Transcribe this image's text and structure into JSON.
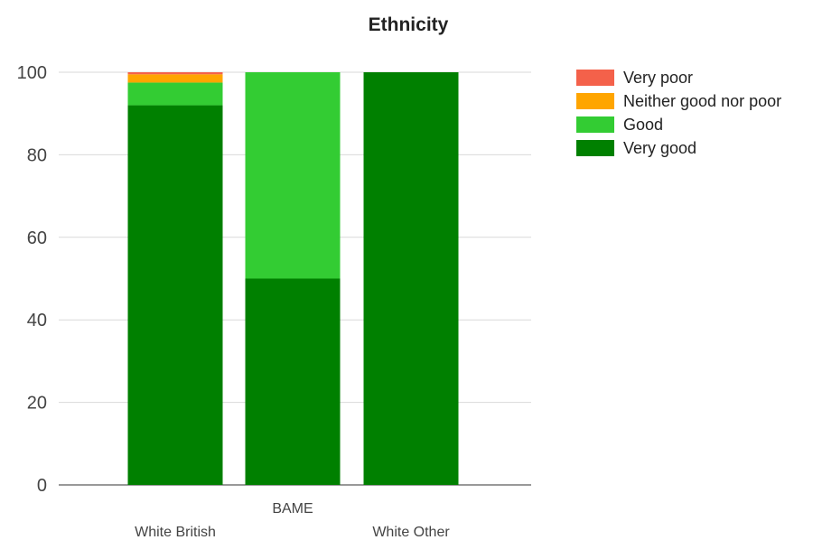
{
  "chart_data": {
    "type": "bar",
    "stacked": true,
    "title": "Ethnicity",
    "xlabel": "",
    "ylabel": "",
    "categories": [
      "White British",
      "BAME",
      "White Other"
    ],
    "series": [
      {
        "name": "Very good",
        "color": "#008000",
        "values": [
          92,
          50,
          100
        ]
      },
      {
        "name": "Good",
        "color": "#33cc33",
        "values": [
          5.5,
          50,
          0
        ]
      },
      {
        "name": "Neither good nor poor",
        "color": "#ffa500",
        "values": [
          2,
          0,
          0
        ]
      },
      {
        "name": "Very poor",
        "color": "#f4614a",
        "values": [
          0.5,
          0,
          0
        ]
      }
    ],
    "legend_order": [
      "Very poor",
      "Neither good nor poor",
      "Good",
      "Very good"
    ],
    "yticks": [
      0,
      20,
      40,
      60,
      80,
      100
    ],
    "ylim": [
      0,
      100
    ],
    "grid": true,
    "legend_position": "right"
  }
}
